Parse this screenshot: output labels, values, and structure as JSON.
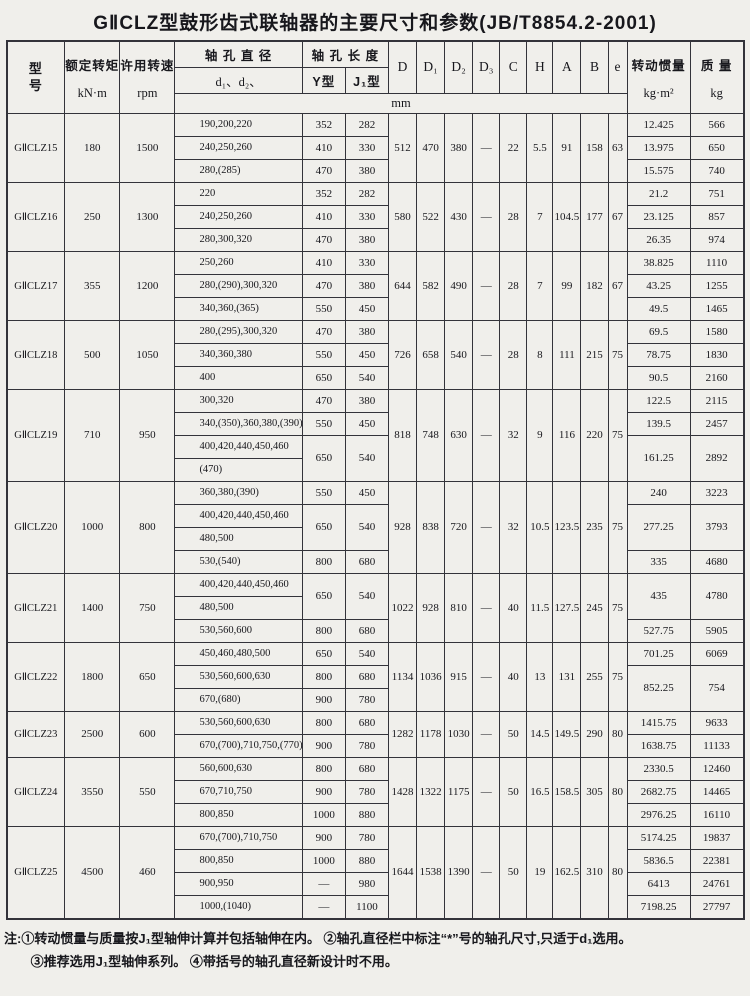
{
  "title": "GⅡCLZ型鼓形齿式联轴器的主要尺寸和参数(JB/T8854.2-2001)",
  "colors": {
    "paper": "#f0efeb",
    "ink": "#17171c",
    "line": "#33333a"
  },
  "header": {
    "model": "型号",
    "torque_label": "额定转矩",
    "torque_unit": "kN·m",
    "speed_label": "许用转速",
    "speed_unit": "rpm",
    "bore_dia_label": "轴 孔 直 径",
    "bore_dia_sub": "d₁、d₂、",
    "bore_len_label": "轴 孔 长 度",
    "y_type": "Y型",
    "j_type": "J₁型",
    "mm_unit": "mm",
    "dims": [
      "D",
      "D₁",
      "D₂",
      "D₃",
      "C",
      "H",
      "A",
      "B",
      "e"
    ],
    "inertia_label": "转动惯量",
    "inertia_unit": "kg·m²",
    "mass_label": "质 量",
    "mass_unit": "kg"
  },
  "groups": [
    {
      "model": "GⅡCLZ15",
      "torque": "180",
      "speed": "1500",
      "dims": [
        "512",
        "470",
        "380",
        "—",
        "22",
        "5.5",
        "91",
        "158",
        "63"
      ],
      "rows": [
        {
          "bore": "190,200,220",
          "y": "352",
          "j": "282",
          "inertia": "12.425",
          "mass": "566"
        },
        {
          "bore": "240,250,260",
          "y": "410",
          "j": "330",
          "inertia": "13.975",
          "mass": "650"
        },
        {
          "bore": "280,(285)",
          "y": "470",
          "j": "380",
          "inertia": "15.575",
          "mass": "740"
        }
      ]
    },
    {
      "model": "GⅡCLZ16",
      "torque": "250",
      "speed": "1300",
      "dims": [
        "580",
        "522",
        "430",
        "—",
        "28",
        "7",
        "104.5",
        "177",
        "67"
      ],
      "rows": [
        {
          "bore": "220",
          "y": "352",
          "j": "282",
          "inertia": "21.2",
          "mass": "751"
        },
        {
          "bore": "240,250,260",
          "y": "410",
          "j": "330",
          "inertia": "23.125",
          "mass": "857"
        },
        {
          "bore": "280,300,320",
          "y": "470",
          "j": "380",
          "inertia": "26.35",
          "mass": "974"
        }
      ]
    },
    {
      "model": "GⅡCLZ17",
      "torque": "355",
      "speed": "1200",
      "dims": [
        "644",
        "582",
        "490",
        "—",
        "28",
        "7",
        "99",
        "182",
        "67"
      ],
      "rows": [
        {
          "bore": "250,260",
          "y": "410",
          "j": "330",
          "inertia": "38.825",
          "mass": "1110"
        },
        {
          "bore": "280,(290),300,320",
          "y": "470",
          "j": "380",
          "inertia": "43.25",
          "mass": "1255"
        },
        {
          "bore": "340,360,(365)",
          "y": "550",
          "j": "450",
          "inertia": "49.5",
          "mass": "1465"
        }
      ]
    },
    {
      "model": "GⅡCLZ18",
      "torque": "500",
      "speed": "1050",
      "dims": [
        "726",
        "658",
        "540",
        "—",
        "28",
        "8",
        "111",
        "215",
        "75"
      ],
      "rows": [
        {
          "bore": "280,(295),300,320",
          "y": "470",
          "j": "380",
          "inertia": "69.5",
          "mass": "1580"
        },
        {
          "bore": "340,360,380",
          "y": "550",
          "j": "450",
          "inertia": "78.75",
          "mass": "1830"
        },
        {
          "bore": "400",
          "y": "650",
          "j": "540",
          "inertia": "90.5",
          "mass": "2160"
        }
      ]
    },
    {
      "model": "GⅡCLZ19",
      "torque": "710",
      "speed": "950",
      "dims": [
        "818",
        "748",
        "630",
        "—",
        "32",
        "9",
        "116",
        "220",
        "75"
      ],
      "rows": [
        {
          "bore": "300,320",
          "y": "470",
          "j": "380",
          "inertia": "122.5",
          "mass": "2115"
        },
        {
          "bore": "340,(350),360,380,(390)",
          "y": "550",
          "j": "450",
          "inertia": "139.5",
          "mass": "2457"
        },
        {
          "bore": "400,420,440,450,460",
          "y": "650",
          "j": "540",
          "inertia": "161.25",
          "mass": "2892",
          "yspan": 2,
          "jspan": 2,
          "ispan": 2,
          "mspan": 2
        },
        {
          "bore": "(470)"
        }
      ]
    },
    {
      "model": "GⅡCLZ20",
      "torque": "1000",
      "speed": "800",
      "dims": [
        "928",
        "838",
        "720",
        "—",
        "32",
        "10.5",
        "123.5",
        "235",
        "75"
      ],
      "rows": [
        {
          "bore": "360,380,(390)",
          "y": "550",
          "j": "450",
          "inertia": "240",
          "mass": "3223"
        },
        {
          "bore": "400,420,440,450,460",
          "y": "650",
          "j": "540",
          "inertia": "277.25",
          "mass": "3793",
          "yspan": 2,
          "jspan": 2,
          "ispan": 2,
          "mspan": 2
        },
        {
          "bore": "480,500"
        },
        {
          "bore": "530,(540)",
          "y": "800",
          "j": "680",
          "inertia": "335",
          "mass": "4680"
        }
      ]
    },
    {
      "model": "GⅡCLZ21",
      "torque": "1400",
      "speed": "750",
      "dims": [
        "1022",
        "928",
        "810",
        "—",
        "40",
        "11.5",
        "127.5",
        "245",
        "75"
      ],
      "rows": [
        {
          "bore": "400,420,440,450,460",
          "y": "650",
          "j": "540",
          "inertia": "435",
          "mass": "4780",
          "yspan": 2,
          "jspan": 2,
          "ispan": 2,
          "mspan": 2
        },
        {
          "bore": "480,500"
        },
        {
          "bore": "530,560,600",
          "y": "800",
          "j": "680",
          "inertia": "527.75",
          "mass": "5905"
        }
      ]
    },
    {
      "model": "GⅡCLZ22",
      "torque": "1800",
      "speed": "650",
      "dims": [
        "1134",
        "1036",
        "915",
        "—",
        "40",
        "13",
        "131",
        "255",
        "75"
      ],
      "rows": [
        {
          "bore": "450,460,480,500",
          "y": "650",
          "j": "540",
          "inertia": "701.25",
          "mass": "6069"
        },
        {
          "bore": "530,560,600,630",
          "y": "800",
          "j": "680",
          "inertia": "852.25",
          "mass": "754",
          "ispan": 2,
          "mspan": 2
        },
        {
          "bore": "670,(680)",
          "y": "900",
          "j": "780"
        }
      ]
    },
    {
      "model": "GⅡCLZ23",
      "torque": "2500",
      "speed": "600",
      "dims": [
        "1282",
        "1178",
        "1030",
        "—",
        "50",
        "14.5",
        "149.5",
        "290",
        "80"
      ],
      "rows": [
        {
          "bore": "530,560,600,630",
          "y": "800",
          "j": "680",
          "inertia": "1415.75",
          "mass": "9633"
        },
        {
          "bore": "670,(700),710,750,(770)",
          "y": "900",
          "j": "780",
          "inertia": "1638.75",
          "mass": "11133"
        }
      ]
    },
    {
      "model": "GⅡCLZ24",
      "torque": "3550",
      "speed": "550",
      "dims": [
        "1428",
        "1322",
        "1175",
        "—",
        "50",
        "16.5",
        "158.5",
        "305",
        "80"
      ],
      "rows": [
        {
          "bore": "560,600,630",
          "y": "800",
          "j": "680",
          "inertia": "2330.5",
          "mass": "12460"
        },
        {
          "bore": "670,710,750",
          "y": "900",
          "j": "780",
          "inertia": "2682.75",
          "mass": "14465"
        },
        {
          "bore": "800,850",
          "y": "1000",
          "j": "880",
          "inertia": "2976.25",
          "mass": "16110"
        }
      ]
    },
    {
      "model": "GⅡCLZ25",
      "torque": "4500",
      "speed": "460",
      "dims": [
        "1644",
        "1538",
        "1390",
        "—",
        "50",
        "19",
        "162.5",
        "310",
        "80"
      ],
      "rows": [
        {
          "bore": "670,(700),710,750",
          "y": "900",
          "j": "780",
          "inertia": "5174.25",
          "mass": "19837"
        },
        {
          "bore": "800,850",
          "y": "1000",
          "j": "880",
          "inertia": "5836.5",
          "mass": "22381"
        },
        {
          "bore": "900,950",
          "y": "—",
          "j": "980",
          "inertia": "6413",
          "mass": "24761"
        },
        {
          "bore": "1000,(1040)",
          "y": "—",
          "j": "1100",
          "inertia": "7198.25",
          "mass": "27797"
        }
      ]
    }
  ],
  "notes": {
    "prefix": "注:",
    "lines": [
      "①转动惯量与质量按J₁型轴伸计算并包括轴伸在内。 ②轴孔直径栏中标注“*”号的轴孔尺寸,只适于d₁选用。",
      "③推荐选用J₁型轴伸系列。 ④带括号的轴孔直径新设计时不用。"
    ]
  }
}
